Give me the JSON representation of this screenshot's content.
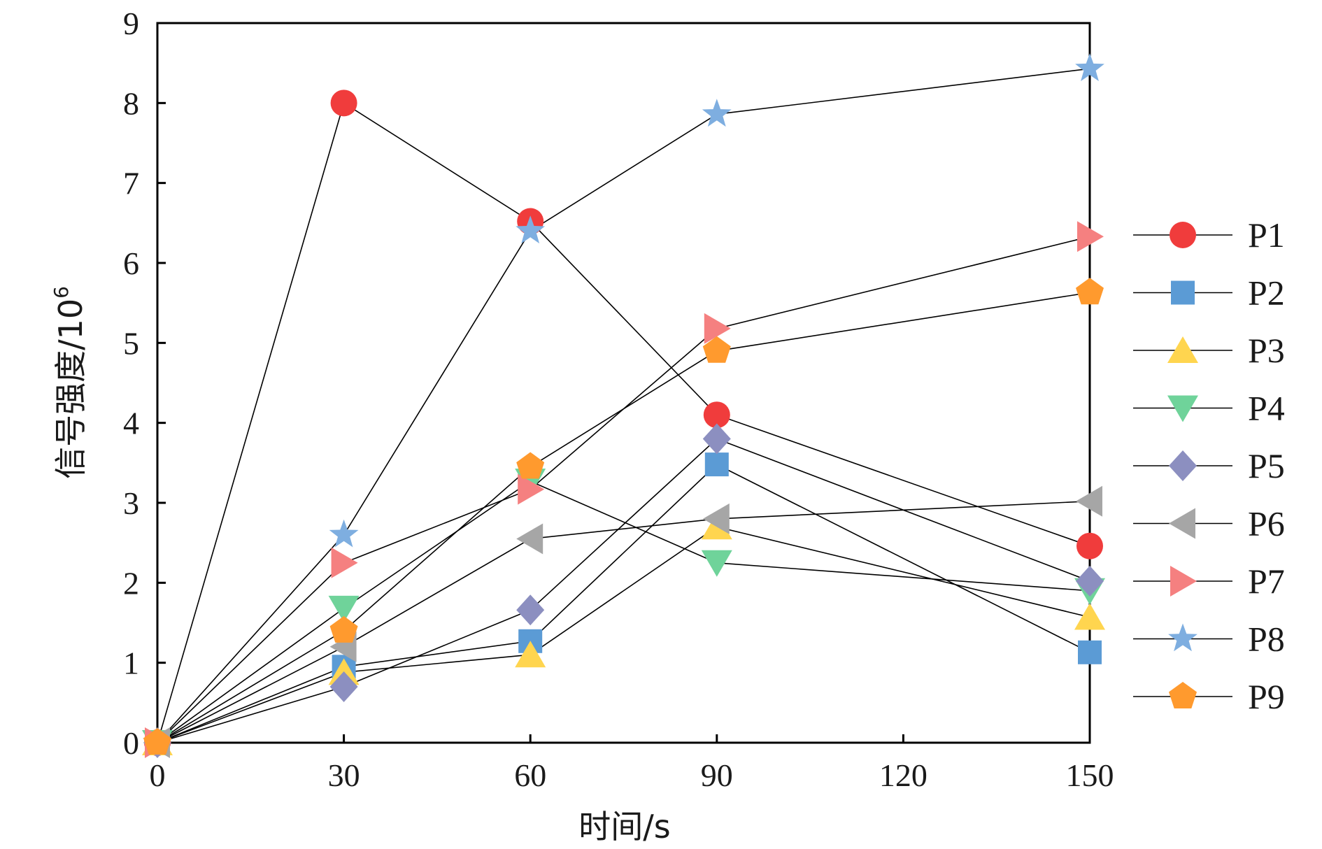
{
  "chart_data": {
    "type": "line",
    "xlabel": "时间/s",
    "ylabel": "信号强度/10",
    "ylabel_superscript": "6",
    "xlim": [
      0,
      150
    ],
    "ylim": [
      0,
      9
    ],
    "xticks": [
      0,
      30,
      60,
      90,
      120,
      150
    ],
    "xtick_labels": [
      "0",
      "30",
      "60",
      "90",
      "120",
      "150"
    ],
    "yticks": [
      0,
      1,
      2,
      3,
      4,
      5,
      6,
      7,
      8,
      9
    ],
    "ytick_labels": [
      "0",
      "1",
      "2",
      "3",
      "4",
      "5",
      "6",
      "7",
      "8",
      "9"
    ],
    "x": [
      0,
      30,
      60,
      90,
      150
    ],
    "legend_position": "right",
    "line_color": "#000000",
    "series": [
      {
        "name": "P1",
        "marker": "circle",
        "color": "#f03c3c",
        "values": [
          0,
          8.0,
          6.52,
          4.1,
          2.46
        ]
      },
      {
        "name": "P2",
        "marker": "square",
        "color": "#5b9bd5",
        "values": [
          0,
          0.95,
          1.27,
          3.48,
          1.13
        ]
      },
      {
        "name": "P3",
        "marker": "triangle-up",
        "color": "#ffd54f",
        "values": [
          0,
          0.88,
          1.1,
          2.7,
          1.57
        ]
      },
      {
        "name": "P4",
        "marker": "triangle-down",
        "color": "#6fd39a",
        "values": [
          0,
          1.68,
          3.27,
          2.25,
          1.9
        ]
      },
      {
        "name": "P5",
        "marker": "diamond",
        "color": "#8c8fc0",
        "values": [
          0,
          0.7,
          1.66,
          3.8,
          2.02
        ]
      },
      {
        "name": "P6",
        "marker": "triangle-left",
        "color": "#a6a6a6",
        "values": [
          0,
          1.2,
          2.55,
          2.8,
          3.02
        ]
      },
      {
        "name": "P7",
        "marker": "triangle-right",
        "color": "#f58080",
        "values": [
          0,
          2.25,
          3.17,
          5.18,
          6.33
        ]
      },
      {
        "name": "P8",
        "marker": "star",
        "color": "#7eaee0",
        "values": [
          0,
          2.6,
          6.4,
          7.86,
          8.43
        ]
      },
      {
        "name": "P9",
        "marker": "pentagon",
        "color": "#ff9a2e",
        "values": [
          0,
          1.4,
          3.45,
          4.9,
          5.63
        ]
      }
    ]
  }
}
